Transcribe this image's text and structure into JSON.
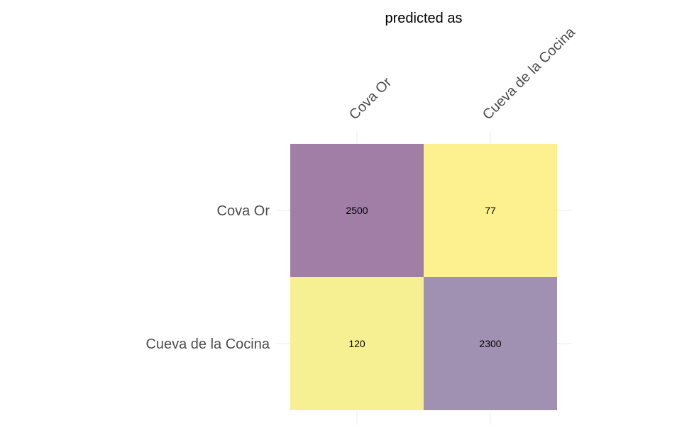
{
  "chart_data": {
    "type": "heatmap",
    "title": "predicted as",
    "column_labels": [
      "Cova Or",
      "Cueva de la Cocina"
    ],
    "row_labels": [
      "Cova Or",
      "Cueva de la Cocina"
    ],
    "values": [
      [
        2500,
        77
      ],
      [
        120,
        2300
      ]
    ],
    "value_labels": [
      [
        "2500",
        "77"
      ],
      [
        "120",
        "2300"
      ]
    ],
    "colors": {
      "high": "#a07ea6",
      "high_alt": "#a090b2",
      "low": "#fdf08e",
      "low_alt": "#f7f092",
      "grid": "#ececec",
      "axis_text": "#4d4d4d",
      "title_text": "#000000"
    },
    "grid": true
  }
}
